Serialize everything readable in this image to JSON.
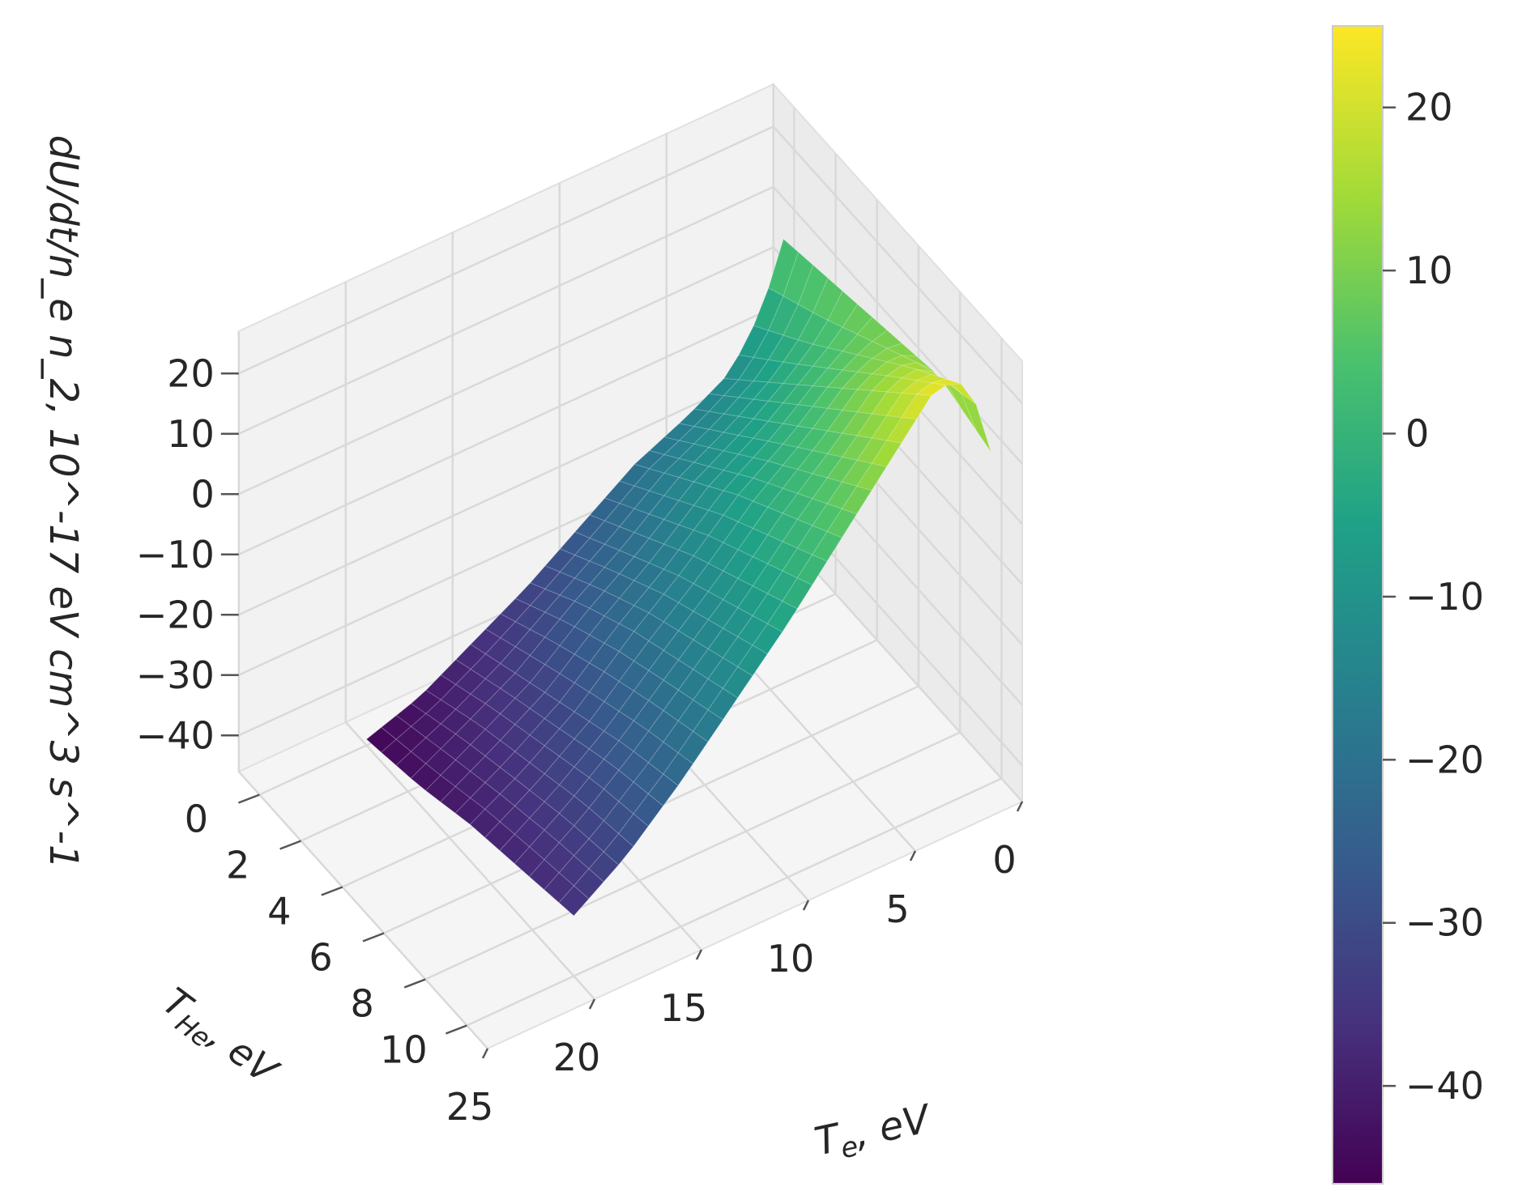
{
  "chart_data": {
    "type": "surface",
    "x": {
      "label_main": "T",
      "label_sub": "e",
      "label_unit": ", eV",
      "range": [
        0,
        25
      ],
      "ticks": [
        0,
        5,
        10,
        15,
        20,
        25
      ],
      "tick_labels": [
        "0",
        "5",
        "10",
        "15",
        "20",
        "25"
      ]
    },
    "y": {
      "label_main": "T",
      "label_sub": "He",
      "label_unit": ", eV",
      "range": [
        -1,
        11
      ],
      "ticks": [
        0,
        2,
        4,
        6,
        8,
        10
      ],
      "tick_labels": [
        "0",
        "2",
        "4",
        "6",
        "8",
        "10"
      ]
    },
    "z": {
      "label": "dU/dt/n_e n_2, 10^-17 eV cm^3 s^-1",
      "range": [
        -46,
        27
      ],
      "ticks": [
        -40,
        -30,
        -20,
        -10,
        0,
        10,
        20
      ],
      "tick_labels": [
        "−40",
        "−30",
        "−20",
        "−10",
        "0",
        "10",
        "20"
      ]
    },
    "surface_Te": [
      0.5,
      1.5,
      3,
      5,
      7.5,
      10,
      12.5,
      15,
      17.5,
      20
    ],
    "surface_THe": [
      0,
      2.5,
      5,
      7.5,
      10
    ],
    "surface_values": [
      [
        6,
        8,
        10,
        12,
        9
      ],
      [
        -4,
        2,
        9,
        16,
        22
      ],
      [
        -12,
        -3,
        6,
        15,
        24
      ],
      [
        -16,
        -8,
        0,
        8,
        16
      ],
      [
        -20,
        -13,
        -6,
        0,
        6
      ],
      [
        -26,
        -20,
        -14,
        -9,
        -4
      ],
      [
        -32,
        -26,
        -21,
        -17,
        -13
      ],
      [
        -37,
        -33,
        -29,
        -25,
        -22
      ],
      [
        -42,
        -38,
        -35,
        -32,
        -30
      ],
      [
        -45,
        -43,
        -40,
        -38,
        -36
      ]
    ],
    "colorbar": {
      "colormap": "viridis",
      "range": [
        -46,
        25
      ],
      "ticks": [
        20,
        10,
        0,
        -10,
        -20,
        -30,
        -40
      ],
      "tick_labels": [
        "20",
        "10",
        "0",
        "−10",
        "−20",
        "−30",
        "−40"
      ]
    },
    "grid": true,
    "legend": "none"
  }
}
